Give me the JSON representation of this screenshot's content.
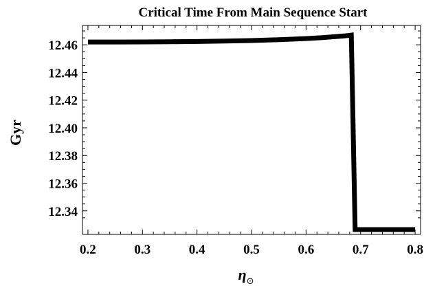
{
  "chart_data": {
    "type": "line",
    "title": "Critical Time From Main Sequence Start",
    "xlabel": "η",
    "xlabel_subscript": "⊙",
    "ylabel": "Gyr",
    "xlim": [
      0.19,
      0.81
    ],
    "ylim": [
      12.323,
      12.474
    ],
    "x_ticks": [
      0.2,
      0.3,
      0.4,
      0.5,
      0.6,
      0.7,
      0.8
    ],
    "x_tick_labels": [
      "0.2",
      "0.3",
      "0.4",
      "0.5",
      "0.6",
      "0.7",
      "0.8"
    ],
    "y_ticks": [
      12.34,
      12.36,
      12.38,
      12.4,
      12.42,
      12.44,
      12.46
    ],
    "y_tick_labels": [
      "12.34",
      "12.36",
      "12.38",
      "12.40",
      "12.42",
      "12.44",
      "12.46"
    ],
    "grid": false,
    "series": [
      {
        "color": "#000000",
        "x": [
          0.2,
          0.25,
          0.3,
          0.35,
          0.4,
          0.45,
          0.5,
          0.55,
          0.6,
          0.63,
          0.65,
          0.67,
          0.683,
          0.69,
          0.75,
          0.8
        ],
        "y": [
          12.462,
          12.462,
          12.4621,
          12.4622,
          12.4624,
          12.4627,
          12.4631,
          12.4637,
          12.4645,
          12.4652,
          12.4658,
          12.4664,
          12.467,
          12.3265,
          12.3265,
          12.3265
        ]
      }
    ]
  }
}
